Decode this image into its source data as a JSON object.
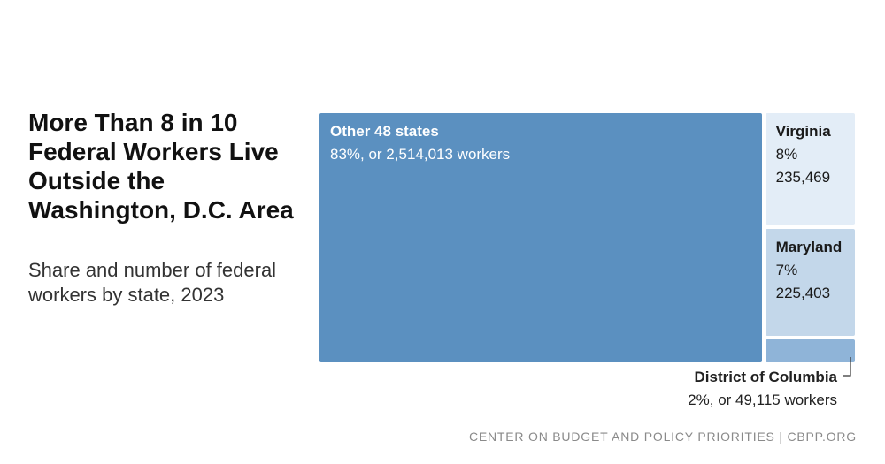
{
  "title": "More Than 8 in 10 Federal Workers Live Outside the Washington, D.C. Area",
  "subtitle": "Share and number of federal workers by state, 2023",
  "footer": "CENTER ON BUDGET AND POLICY PRIORITIES | CBPP.ORG",
  "colors": {
    "other": "#5b90c0",
    "virginia": "#e3edf7",
    "maryland": "#c3d7ea",
    "dc": "#8fb4d8"
  },
  "chart_data": {
    "type": "treemap",
    "items": [
      {
        "name": "Other 48 states",
        "share": 83,
        "workers": 2514013,
        "label_line": "83%, or 2,514,013 workers"
      },
      {
        "name": "Virginia",
        "share": 8,
        "workers": 235469,
        "label_share": "8%",
        "label_workers": "235,469"
      },
      {
        "name": "Maryland",
        "share": 7,
        "workers": 225403,
        "label_share": "7%",
        "label_workers": "225,403"
      },
      {
        "name": "District of Columbia",
        "share": 2,
        "workers": 49115,
        "label_line": "2%, or 49,115 workers"
      }
    ]
  }
}
